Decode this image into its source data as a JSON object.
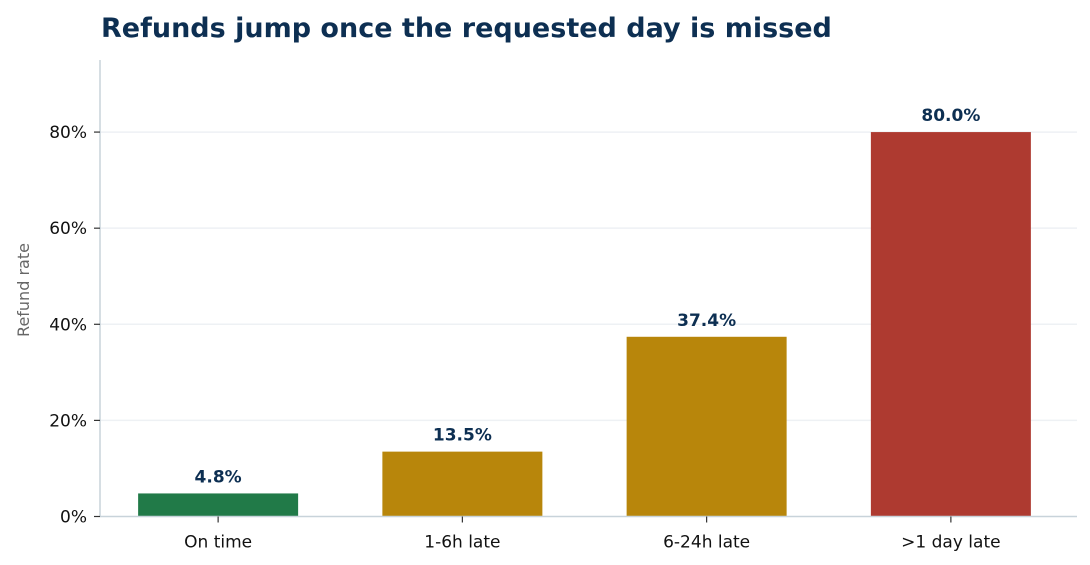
{
  "chart_data": {
    "type": "bar",
    "title": "Refunds jump once the requested day is missed",
    "xlabel": "",
    "ylabel": "Refund rate",
    "categories": [
      "On time",
      "1-6h late",
      "6-24h late",
      ">1 day late"
    ],
    "values": [
      4.8,
      13.5,
      37.4,
      80.0
    ],
    "data_labels": [
      "4.8%",
      "13.5%",
      "37.4%",
      "80.0%"
    ],
    "colors": [
      "#217a48",
      "#b8860b",
      "#b8860b",
      "#ae3a30"
    ],
    "ylim": [
      0,
      95
    ],
    "yticks": [
      0,
      20,
      40,
      60,
      80
    ],
    "ytick_labels": [
      "0%",
      "20%",
      "40%",
      "60%",
      "80%"
    ],
    "grid": "horizontal",
    "legend": "none"
  }
}
